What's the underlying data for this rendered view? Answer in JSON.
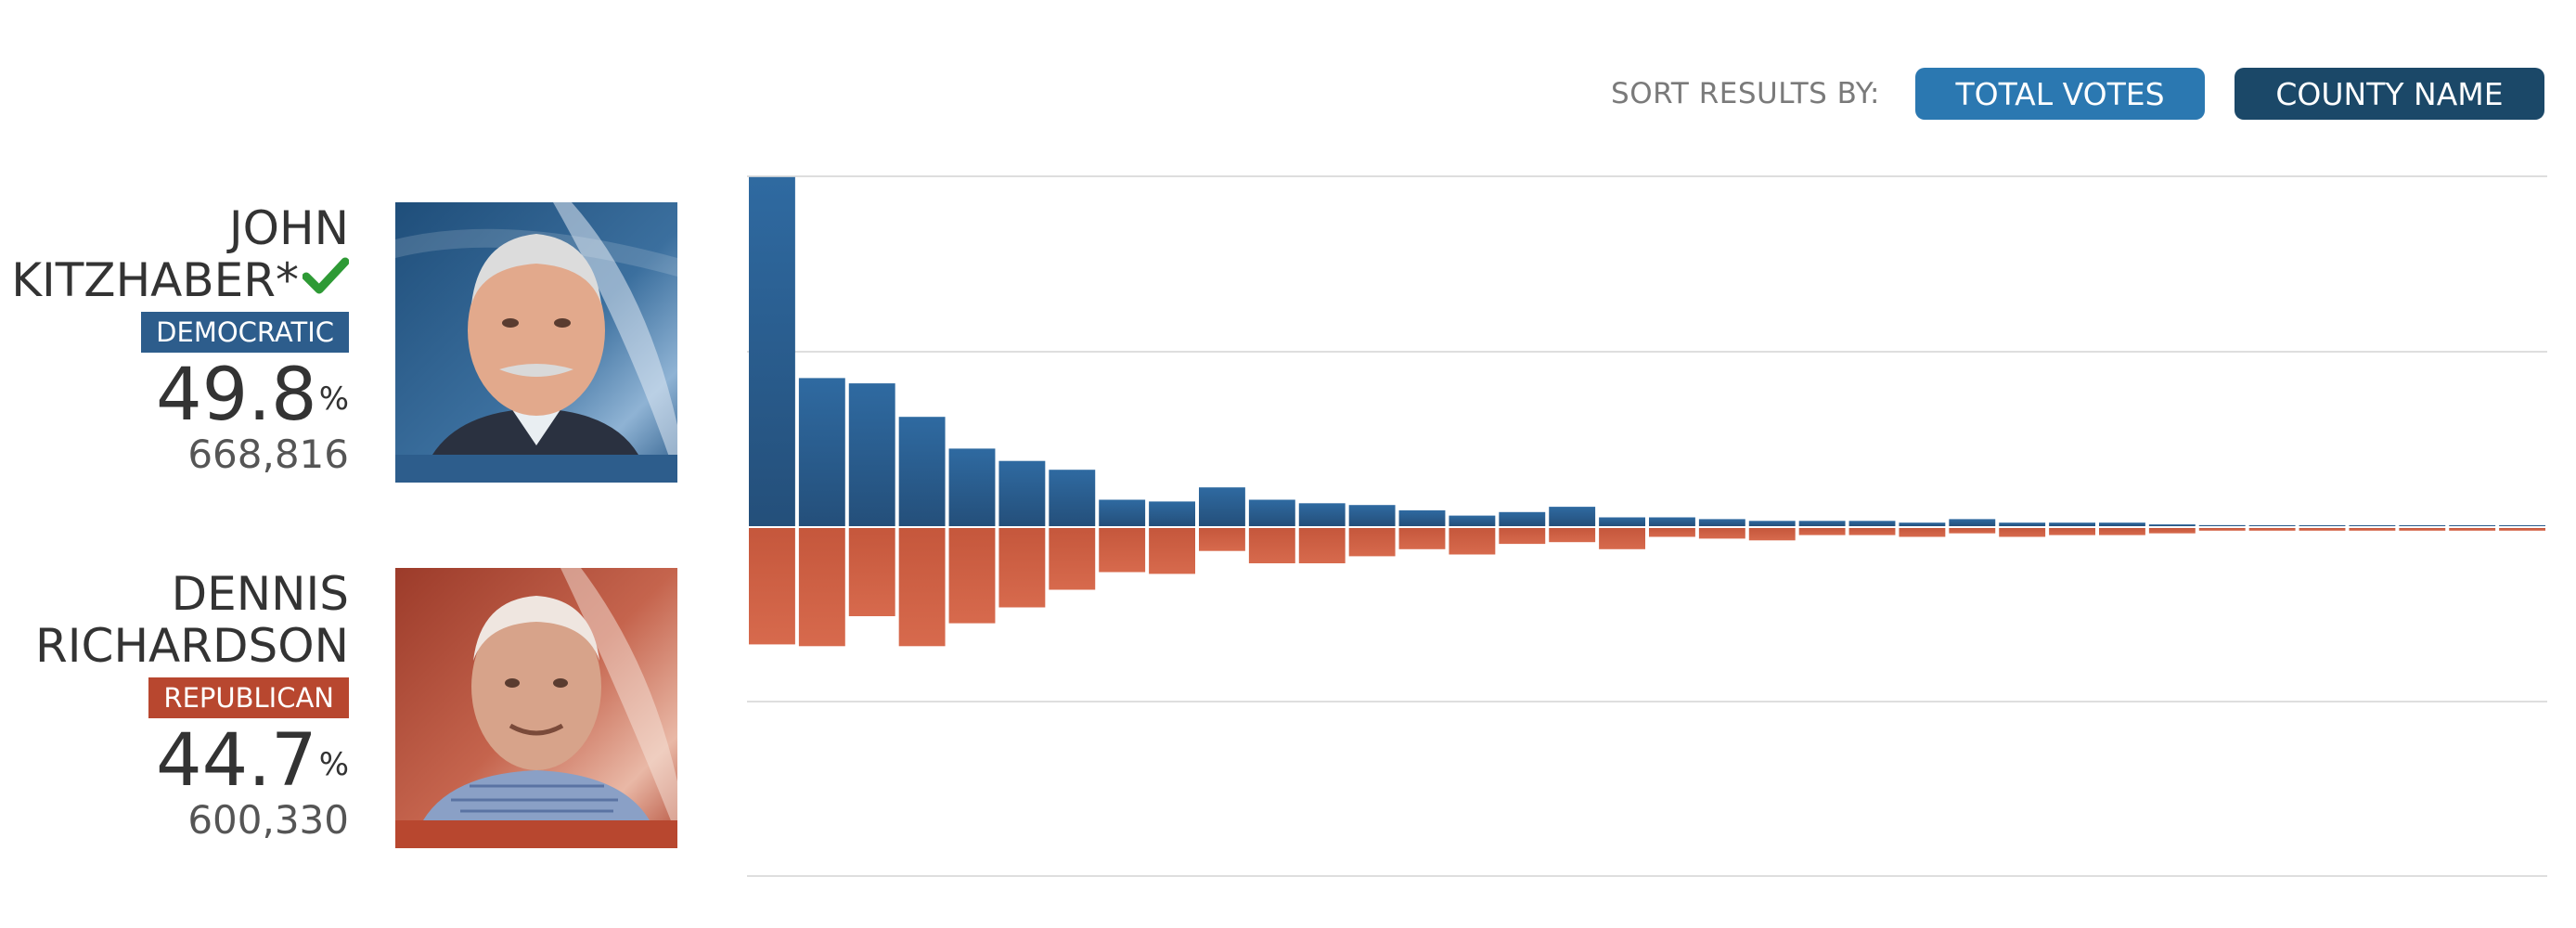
{
  "sort": {
    "label": "SORT RESULTS BY:",
    "options": [
      "TOTAL VOTES",
      "COUNTY NAME"
    ]
  },
  "candidates": [
    {
      "first": "JOHN",
      "last": "KITZHABER*",
      "winner": true,
      "party": "DEMOCRATIC",
      "percent": "49.8",
      "percent_sign": "%",
      "votes": "668,816",
      "color": "#2d5d8c"
    },
    {
      "first": "DENNIS",
      "last": "RICHARDSON",
      "winner": false,
      "party": "REPUBLICAN",
      "percent": "44.7",
      "percent_sign": "%",
      "votes": "600,330",
      "color": "#b8472f"
    }
  ],
  "icons": {
    "winner": "check-icon"
  },
  "colors": {
    "democratic": "#2d5d8c",
    "republican": "#b8472f",
    "button_active": "#2b78b1",
    "button_dark": "#1b4868"
  },
  "chart_data": {
    "type": "bar",
    "orientation": "diverging",
    "description_of_axes": "counties sorted by total votes; Democratic votes drawn upward, Republican votes drawn downward",
    "grid": true,
    "ylim": [
      -200000,
      200000
    ],
    "series": [
      {
        "name": "DEMOCRATIC",
        "values": [
          198000,
          84000,
          81000,
          62000,
          44000,
          37000,
          32000,
          15000,
          14000,
          22000,
          15000,
          13000,
          12000,
          9000,
          6000,
          8000,
          11000,
          5000,
          5000,
          4000,
          3000,
          3000,
          3000,
          2000,
          4000,
          2000,
          2000,
          2000,
          1000,
          600,
          500,
          400,
          400,
          400,
          300,
          300
        ]
      },
      {
        "name": "REPUBLICAN",
        "values": [
          66000,
          67000,
          50000,
          67000,
          54000,
          45000,
          35000,
          25000,
          26000,
          13000,
          20000,
          20000,
          16000,
          12000,
          15000,
          9000,
          8000,
          12000,
          5000,
          6000,
          7000,
          4000,
          4000,
          5000,
          3000,
          5000,
          4000,
          4000,
          3000,
          1500,
          1500,
          1500,
          1500,
          1500,
          1500,
          1500
        ]
      }
    ]
  }
}
